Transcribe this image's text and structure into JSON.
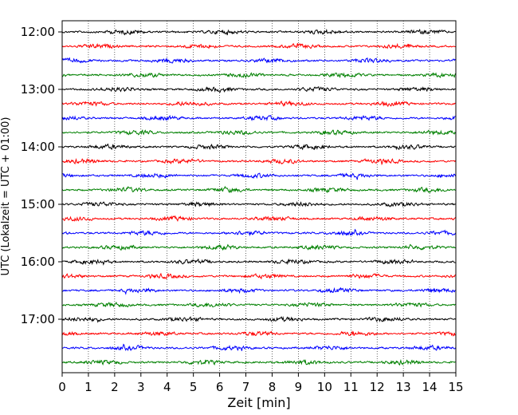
{
  "chart_data": {
    "type": "line",
    "title": "",
    "xlabel": "Zeit  [min]",
    "ylabel": "UTC (Lokalzeit = UTC + 01:00)",
    "xlim": [
      0,
      15
    ],
    "x_ticks": [
      "0",
      "1",
      "2",
      "3",
      "4",
      "5",
      "6",
      "7",
      "8",
      "9",
      "10",
      "11",
      "12",
      "13",
      "14",
      "15"
    ],
    "y_ticks": [
      "12:00",
      "13:00",
      "14:00",
      "15:00",
      "16:00",
      "17:00"
    ],
    "trace_start_times": [
      "12:00",
      "12:15",
      "12:30",
      "12:45",
      "13:00",
      "13:15",
      "13:30",
      "13:45",
      "14:00",
      "14:15",
      "14:30",
      "14:45",
      "15:00",
      "15:15",
      "15:30",
      "15:45",
      "16:00",
      "16:15",
      "16:30",
      "16:45",
      "17:00",
      "17:15",
      "17:30",
      "17:45"
    ],
    "trace_interval_min": 15,
    "trace_colors": [
      "#000000",
      "#ff0000",
      "#0000ff",
      "#008000"
    ],
    "grid": "vertical dotted lines at each minute",
    "legend": "none"
  }
}
